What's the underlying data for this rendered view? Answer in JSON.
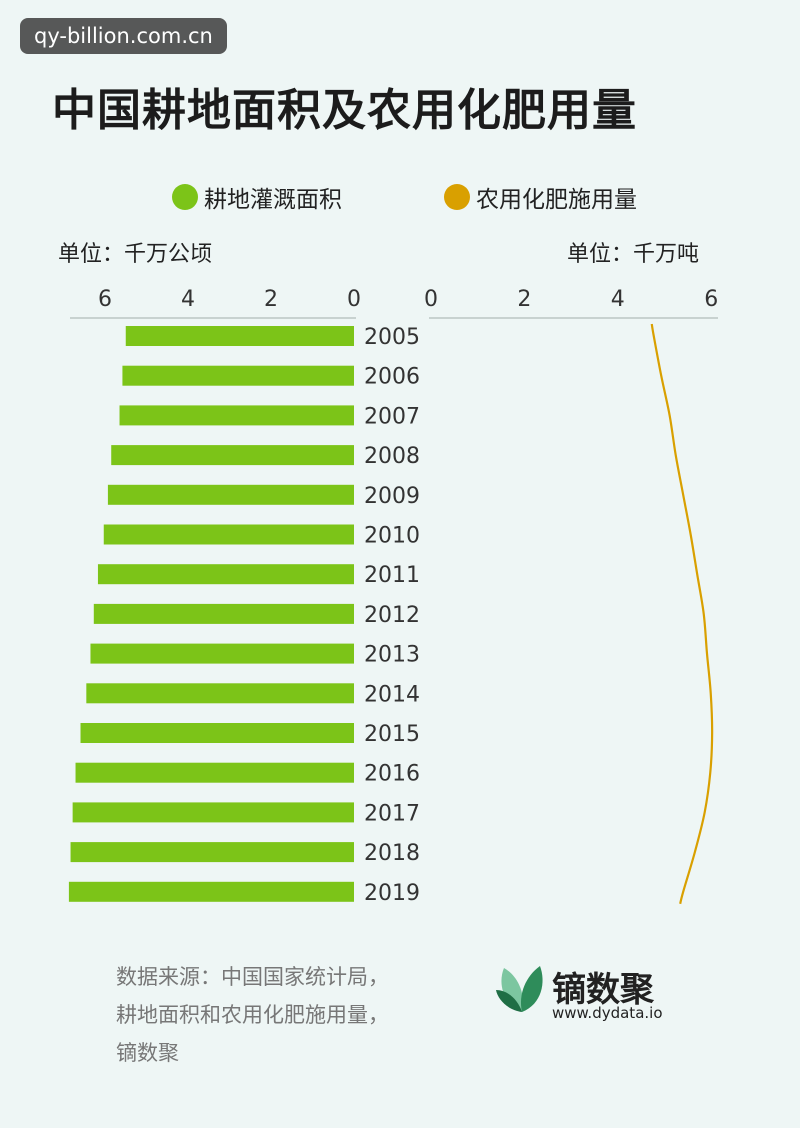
{
  "watermark": "qy-billion.com.cn",
  "brand": {
    "name": "镝数聚",
    "url": "www.dydata.io"
  },
  "source_lines": [
    "数据来源：中国国家统计局，",
    "耕地面积和农用化肥施用量，",
    "镝数聚"
  ],
  "colors": {
    "bar": "#7cc418",
    "line": "#d9a000",
    "background": "#eef6f5",
    "logo_dark": "#2e8c5a",
    "logo_light": "#7cc6a0"
  },
  "chart_data": {
    "type": "bar+line",
    "title": "中国耕地面积及农用化肥用量",
    "categories": [
      "2005",
      "2006",
      "2007",
      "2008",
      "2009",
      "2010",
      "2011",
      "2012",
      "2013",
      "2014",
      "2015",
      "2016",
      "2017",
      "2018",
      "2019"
    ],
    "series": [
      {
        "name": "耕地灌溉面积",
        "type": "bar",
        "unit": "单位：千万公顷",
        "axis_ticks": [
          "6",
          "4",
          "2",
          "0"
        ],
        "xlim": [
          0,
          6.5
        ],
        "values": [
          5.5,
          5.58,
          5.65,
          5.85,
          5.93,
          6.03,
          6.17,
          6.27,
          6.35,
          6.45,
          6.59,
          6.71,
          6.78,
          6.83,
          6.87
        ]
      },
      {
        "name": "农用化肥施用量",
        "type": "line",
        "unit": "单位：千万吨",
        "axis_ticks": [
          "0",
          "2",
          "4",
          "6"
        ],
        "xlim": [
          0,
          6
        ],
        "values": [
          4.77,
          4.93,
          5.11,
          5.24,
          5.4,
          5.56,
          5.7,
          5.84,
          5.91,
          5.99,
          6.02,
          5.98,
          5.86,
          5.65,
          5.4
        ]
      }
    ]
  }
}
